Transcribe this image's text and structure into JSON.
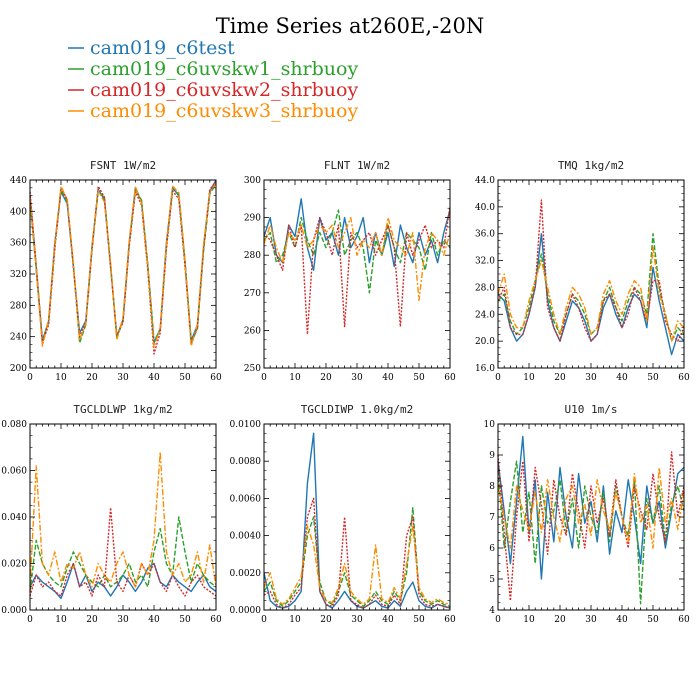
{
  "figure": {
    "title": "Time Series at260E,-20N"
  },
  "legend": [
    {
      "name": "cam019_c6test",
      "color": "#1f77b4",
      "dash": ""
    },
    {
      "name": "cam019_c6uvskw1_shrbuoy",
      "color": "#2ca02c",
      "dash": "5,2"
    },
    {
      "name": "cam019_c6uvskw2_shrbuoy",
      "color": "#d62728",
      "dash": "2,1.5"
    },
    {
      "name": "cam019_c6uvskw3_shrbuoy",
      "color": "#ff8c00",
      "dash": "6,2,2,2"
    }
  ],
  "chart_data": [
    {
      "type": "line",
      "title": "FSNT   1W/m2",
      "x": [
        0,
        2,
        4,
        6,
        8,
        10,
        12,
        14,
        16,
        18,
        20,
        22,
        24,
        26,
        28,
        30,
        32,
        34,
        36,
        38,
        40,
        42,
        44,
        46,
        48,
        50,
        52,
        54,
        56,
        58,
        60
      ],
      "xlim": [
        0,
        60
      ],
      "xticks": [
        0,
        10,
        20,
        30,
        40,
        50,
        60
      ],
      "ylim": [
        200,
        440
      ],
      "yticks": [
        "200",
        "240",
        "280",
        "320",
        "360",
        "400",
        "440"
      ],
      "series": [
        {
          "values": [
            420,
            330,
            235,
            260,
            360,
            425,
            410,
            330,
            245,
            260,
            355,
            428,
            415,
            330,
            240,
            262,
            360,
            430,
            412,
            330,
            232,
            250,
            360,
            430,
            420,
            335,
            235,
            255,
            355,
            425,
            440
          ]
        },
        {
          "values": [
            415,
            325,
            232,
            258,
            355,
            428,
            412,
            332,
            232,
            255,
            352,
            425,
            418,
            332,
            238,
            260,
            358,
            428,
            414,
            332,
            235,
            248,
            355,
            428,
            422,
            338,
            232,
            250,
            350,
            422,
            435
          ]
        },
        {
          "values": [
            425,
            332,
            232,
            255,
            352,
            430,
            415,
            328,
            240,
            258,
            350,
            432,
            418,
            328,
            242,
            258,
            355,
            425,
            408,
            325,
            218,
            245,
            352,
            426,
            416,
            330,
            230,
            252,
            352,
            428,
            438
          ]
        },
        {
          "values": [
            418,
            328,
            228,
            262,
            358,
            432,
            415,
            334,
            236,
            256,
            356,
            426,
            412,
            334,
            236,
            264,
            362,
            432,
            410,
            328,
            226,
            252,
            358,
            432,
            424,
            336,
            228,
            256,
            358,
            424,
            436
          ]
        }
      ]
    },
    {
      "type": "line",
      "title": "FLNT   1W/m2",
      "x": [
        0,
        2,
        4,
        6,
        8,
        10,
        12,
        14,
        16,
        18,
        20,
        22,
        24,
        26,
        28,
        30,
        32,
        34,
        36,
        38,
        40,
        42,
        44,
        46,
        48,
        50,
        52,
        54,
        56,
        58,
        60
      ],
      "xlim": [
        0,
        60
      ],
      "xticks": [
        0,
        10,
        20,
        30,
        40,
        50,
        60
      ],
      "ylim": [
        250,
        300
      ],
      "yticks": [
        "250",
        "260",
        "270",
        "280",
        "290",
        "300"
      ],
      "series": [
        {
          "values": [
            285,
            290,
            280,
            278,
            288,
            285,
            295,
            282,
            276,
            290,
            284,
            286,
            280,
            290,
            282,
            285,
            290,
            278,
            286,
            280,
            286,
            277,
            288,
            282,
            278,
            286,
            280,
            284,
            278,
            286,
            292
          ]
        },
        {
          "values": [
            284,
            286,
            278,
            280,
            286,
            282,
            290,
            284,
            280,
            286,
            282,
            286,
            292,
            280,
            284,
            286,
            282,
            270,
            284,
            280,
            288,
            282,
            278,
            286,
            284,
            282,
            276,
            286,
            280,
            284,
            282
          ]
        },
        {
          "values": [
            286,
            284,
            280,
            276,
            288,
            282,
            288,
            259,
            284,
            290,
            286,
            280,
            288,
            261,
            286,
            282,
            284,
            286,
            280,
            284,
            288,
            282,
            261,
            286,
            280,
            284,
            288,
            282,
            284,
            282,
            293
          ]
        },
        {
          "values": [
            283,
            288,
            282,
            278,
            286,
            284,
            288,
            282,
            284,
            288,
            286,
            288,
            282,
            286,
            290,
            280,
            284,
            282,
            286,
            280,
            290,
            284,
            282,
            280,
            286,
            268,
            282,
            286,
            284,
            280,
            286
          ]
        }
      ]
    },
    {
      "type": "line",
      "title": "TMQ   1kg/m2",
      "x": [
        0,
        2,
        4,
        6,
        8,
        10,
        12,
        14,
        16,
        18,
        20,
        22,
        24,
        26,
        28,
        30,
        32,
        34,
        36,
        38,
        40,
        42,
        44,
        46,
        48,
        50,
        52,
        54,
        56,
        58,
        60
      ],
      "xlim": [
        0,
        60
      ],
      "xticks": [
        0,
        10,
        20,
        30,
        40,
        50,
        60
      ],
      "ylim": [
        16,
        44
      ],
      "yticks": [
        "16.0",
        "20.0",
        "24.0",
        "28.0",
        "32.0",
        "36.0",
        "40.0",
        "44.0"
      ],
      "series": [
        {
          "values": [
            27,
            26,
            22,
            20,
            21,
            24,
            28,
            36,
            26,
            22,
            20,
            23,
            26,
            25,
            23,
            20,
            21,
            25,
            27,
            24,
            22,
            25,
            27,
            26,
            22,
            31,
            26,
            22,
            18,
            21,
            20
          ]
        },
        {
          "values": [
            26,
            27,
            23,
            21,
            22,
            25,
            29,
            33,
            27,
            23,
            21,
            24,
            27,
            26,
            24,
            21,
            22,
            26,
            28,
            25,
            23,
            26,
            28,
            27,
            24,
            36,
            28,
            24,
            20,
            22,
            21
          ]
        },
        {
          "values": [
            26,
            28,
            22,
            21,
            21,
            24,
            28,
            41,
            25,
            22,
            20,
            24,
            27,
            25,
            22,
            20,
            21,
            26,
            27,
            25,
            22,
            24,
            28,
            26,
            23,
            29,
            29,
            23,
            21,
            20,
            22
          ]
        },
        {
          "values": [
            27,
            30,
            24,
            22,
            22,
            26,
            29,
            32,
            28,
            24,
            21,
            25,
            28,
            27,
            25,
            21,
            22,
            27,
            29,
            26,
            24,
            27,
            29,
            28,
            23,
            34,
            27,
            24,
            20,
            23,
            22
          ]
        }
      ]
    },
    {
      "type": "line",
      "title": "TGCLDLWP   1kg/m2",
      "x": [
        0,
        2,
        4,
        6,
        8,
        10,
        12,
        14,
        16,
        18,
        20,
        22,
        24,
        26,
        28,
        30,
        32,
        34,
        36,
        38,
        40,
        42,
        44,
        46,
        48,
        50,
        52,
        54,
        56,
        58,
        60
      ],
      "xlim": [
        0,
        60
      ],
      "xticks": [
        0,
        10,
        20,
        30,
        40,
        50,
        60
      ],
      "ylim": [
        0,
        0.08
      ],
      "yticks": [
        "0.000",
        "0.020",
        "0.040",
        "0.060",
        "0.080"
      ],
      "series": [
        {
          "values": [
            0.01,
            0.015,
            0.012,
            0.01,
            0.008,
            0.005,
            0.012,
            0.02,
            0.01,
            0.015,
            0.008,
            0.012,
            0.01,
            0.006,
            0.01,
            0.015,
            0.012,
            0.008,
            0.012,
            0.018,
            0.02,
            0.012,
            0.01,
            0.015,
            0.012,
            0.01,
            0.008,
            0.012,
            0.015,
            0.01,
            0.008
          ]
        },
        {
          "values": [
            0.008,
            0.03,
            0.02,
            0.015,
            0.012,
            0.01,
            0.018,
            0.025,
            0.02,
            0.015,
            0.012,
            0.01,
            0.015,
            0.01,
            0.012,
            0.015,
            0.02,
            0.012,
            0.015,
            0.01,
            0.025,
            0.035,
            0.02,
            0.015,
            0.04,
            0.025,
            0.012,
            0.02,
            0.015,
            0.012,
            0.01
          ]
        },
        {
          "values": [
            0.006,
            0.015,
            0.01,
            0.012,
            0.008,
            0.006,
            0.015,
            0.02,
            0.01,
            0.012,
            0.006,
            0.015,
            0.01,
            0.044,
            0.012,
            0.008,
            0.015,
            0.01,
            0.02,
            0.015,
            0.02,
            0.012,
            0.008,
            0.015,
            0.01,
            0.006,
            0.012,
            0.015,
            0.01,
            0.008,
            0.006
          ]
        },
        {
          "values": [
            0.01,
            0.062,
            0.02,
            0.015,
            0.025,
            0.012,
            0.02,
            0.018,
            0.025,
            0.015,
            0.01,
            0.02,
            0.015,
            0.012,
            0.02,
            0.025,
            0.015,
            0.01,
            0.02,
            0.015,
            0.03,
            0.068,
            0.025,
            0.015,
            0.02,
            0.012,
            0.015,
            0.025,
            0.012,
            0.028,
            0.01
          ]
        }
      ]
    },
    {
      "type": "line",
      "title": "TGCLDIWP   1.0kg/m2",
      "x": [
        0,
        2,
        4,
        6,
        8,
        10,
        12,
        14,
        16,
        18,
        20,
        22,
        24,
        26,
        28,
        30,
        32,
        34,
        36,
        38,
        40,
        42,
        44,
        46,
        48,
        50,
        52,
        54,
        56,
        58,
        60
      ],
      "xlim": [
        0,
        60
      ],
      "xticks": [
        0,
        10,
        20,
        30,
        40,
        50,
        60
      ],
      "ylim": [
        0,
        0.01
      ],
      "yticks": [
        "0.0000",
        "0.0020",
        "0.0040",
        "0.0060",
        "0.0080",
        "0.0100"
      ],
      "series": [
        {
          "values": [
            0.002,
            0.0005,
            0.0002,
            0.0001,
            0.0002,
            0.0005,
            0.001,
            0.0068,
            0.0095,
            0.001,
            0.0003,
            0.0001,
            0.0005,
            0.001,
            0.0005,
            0.0002,
            0.0001,
            0.0003,
            0.0005,
            0.0002,
            0.0001,
            0.0005,
            0.0002,
            0.001,
            0.0015,
            0.0005,
            0.0002,
            0.0001,
            0.0003,
            0.0002,
            0.0001
          ]
        },
        {
          "values": [
            0.001,
            0.0015,
            0.0005,
            0.0002,
            0.0005,
            0.001,
            0.0015,
            0.004,
            0.005,
            0.0015,
            0.0005,
            0.0003,
            0.001,
            0.002,
            0.0008,
            0.0005,
            0.0002,
            0.0005,
            0.001,
            0.0005,
            0.0003,
            0.001,
            0.0005,
            0.002,
            0.0055,
            0.001,
            0.0005,
            0.0003,
            0.0005,
            0.0003,
            0.0002
          ]
        },
        {
          "values": [
            0.0008,
            0.001,
            0.0003,
            0.0001,
            0.0003,
            0.0008,
            0.0012,
            0.005,
            0.006,
            0.001,
            0.0003,
            0.0002,
            0.0008,
            0.005,
            0.0005,
            0.0003,
            0.0001,
            0.0003,
            0.0008,
            0.0003,
            0.0002,
            0.0008,
            0.0003,
            0.004,
            0.005,
            0.0008,
            0.0003,
            0.0002,
            0.0003,
            0.0002,
            0.0001
          ]
        },
        {
          "values": [
            0.0012,
            0.002,
            0.0006,
            0.0003,
            0.0006,
            0.0012,
            0.0018,
            0.0045,
            0.0035,
            0.0012,
            0.0005,
            0.0004,
            0.0012,
            0.0025,
            0.001,
            0.0006,
            0.0003,
            0.0006,
            0.0035,
            0.0006,
            0.0004,
            0.0012,
            0.0006,
            0.0025,
            0.0045,
            0.0012,
            0.0006,
            0.0004,
            0.0006,
            0.0004,
            0.0003
          ]
        }
      ]
    },
    {
      "type": "line",
      "title": "U10   1m/s",
      "x": [
        0,
        2,
        4,
        6,
        8,
        10,
        12,
        14,
        16,
        18,
        20,
        22,
        24,
        26,
        28,
        30,
        32,
        34,
        36,
        38,
        40,
        42,
        44,
        46,
        48,
        50,
        52,
        54,
        56,
        58,
        60
      ],
      "xlim": [
        0,
        60
      ],
      "xticks": [
        0,
        10,
        20,
        30,
        40,
        50,
        60
      ],
      "ylim": [
        4,
        10
      ],
      "yticks": [
        "4",
        "5",
        "6",
        "7",
        "8",
        "9",
        "10"
      ],
      "series": [
        {
          "values": [
            8.8,
            7.2,
            5.5,
            7.5,
            9.6,
            6.5,
            8.2,
            5.0,
            7.8,
            6.2,
            8.6,
            7.0,
            6.0,
            8.4,
            6.8,
            7.5,
            6.2,
            8.0,
            5.8,
            7.2,
            6.5,
            8.2,
            7.0,
            5.5,
            8.0,
            6.8,
            7.5,
            6.0,
            7.2,
            8.4,
            8.6
          ]
        },
        {
          "values": [
            8.5,
            6.0,
            7.5,
            8.8,
            6.5,
            7.8,
            5.5,
            8.0,
            6.8,
            7.2,
            8.2,
            6.5,
            7.6,
            6.0,
            8.0,
            7.0,
            6.5,
            7.8,
            6.2,
            8.0,
            7.0,
            6.4,
            8.2,
            4.2,
            7.6,
            6.8,
            8.0,
            6.2,
            7.4,
            8.0,
            7.2
          ]
        },
        {
          "values": [
            9.0,
            6.5,
            4.3,
            7.0,
            8.8,
            6.2,
            8.6,
            7.4,
            5.8,
            8.2,
            7.0,
            6.4,
            8.4,
            7.2,
            6.0,
            8.0,
            6.8,
            7.6,
            6.4,
            8.2,
            7.0,
            6.0,
            8.0,
            7.2,
            6.6,
            8.4,
            7.0,
            6.2,
            9.1,
            7.0,
            8.0
          ]
        },
        {
          "values": [
            8.0,
            7.0,
            6.0,
            8.0,
            7.2,
            6.6,
            7.8,
            6.5,
            8.2,
            7.0,
            6.2,
            7.6,
            8.0,
            6.8,
            7.4,
            6.4,
            8.2,
            7.2,
            6.6,
            7.8,
            7.0,
            6.2,
            8.4,
            6.8,
            7.4,
            6.0,
            8.6,
            6.8,
            7.6,
            6.6,
            7.8
          ]
        }
      ]
    }
  ]
}
